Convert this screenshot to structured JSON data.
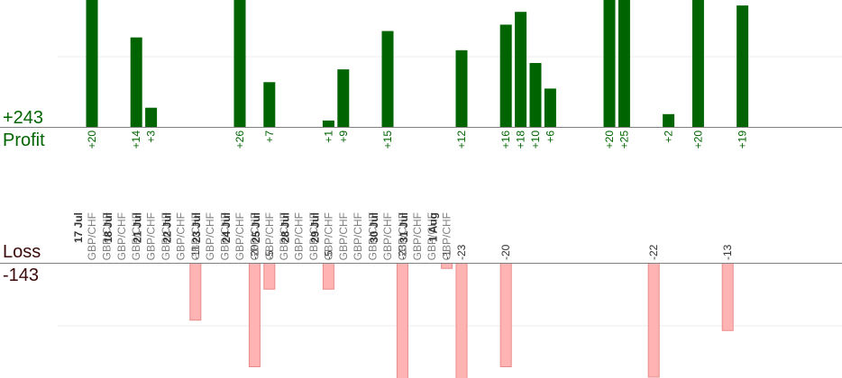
{
  "summary": {
    "profit_total": "+243",
    "profit_label": "Profit",
    "loss_label": "Loss",
    "loss_total": "-143"
  },
  "colors": {
    "profit_bar": "#006400",
    "loss_bar": "#ffb3b3",
    "loss_bar_edge": "#e88a8a",
    "axis": "#808080",
    "grid": "#eeeeee",
    "date_text": "#333333",
    "pair_text": "#808080"
  },
  "chart_data": {
    "type": "bar",
    "profit_scale_max": 20,
    "loss_scale_max": 20,
    "grid": true,
    "columns": [
      {
        "date": "17 Jul",
        "pairs": [
          "GBP/CHF"
        ]
      },
      {
        "date": "",
        "pairs": [
          "GBP/CHF"
        ]
      },
      {
        "date": "18 Jul",
        "pairs": [
          "GBP/CHF"
        ]
      },
      {
        "date": "",
        "pairs": [
          "GBP/CHF"
        ]
      },
      {
        "date": "21 Jul",
        "pairs": [
          "GBP/CHF"
        ]
      },
      {
        "date": "",
        "pairs": [
          "GBP/CHF"
        ]
      },
      {
        "date": "22 Jul",
        "pairs": [
          "GBP/CHF"
        ]
      },
      {
        "date": "",
        "pairs": [
          "GBP/CHF"
        ]
      },
      {
        "date": "23 Jul",
        "pairs": [
          "GBP/CHF"
        ]
      },
      {
        "date": "",
        "pairs": [
          "GBP/CHF"
        ]
      },
      {
        "date": "24 Jul",
        "pairs": [
          "GBP/CHF"
        ]
      },
      {
        "date": "",
        "pairs": [
          "GBP/CHF"
        ]
      },
      {
        "date": "25 Jul",
        "pairs": [
          "GBP/CHF"
        ]
      },
      {
        "date": "",
        "pairs": [
          "GBP/CHF"
        ]
      },
      {
        "date": "28 Jul",
        "pairs": [
          "GBP/CHF"
        ]
      },
      {
        "date": "",
        "pairs": [
          "GBP/CHF"
        ]
      },
      {
        "date": "29 Jul",
        "pairs": [
          "GBP/CHF"
        ]
      },
      {
        "date": "",
        "pairs": [
          "GBP/CHF"
        ]
      },
      {
        "date": "",
        "pairs": [
          "GBP/CHF"
        ]
      },
      {
        "date": "",
        "pairs": [
          "GBP/CHF"
        ]
      },
      {
        "date": "30 Jul",
        "pairs": [
          "GBP/CHF"
        ]
      },
      {
        "date": "",
        "pairs": [
          "GBP/CHF"
        ]
      },
      {
        "date": "31 Jul",
        "pairs": [
          "GBP/CHF"
        ]
      },
      {
        "date": "",
        "pairs": [
          "GBP/CHF"
        ]
      },
      {
        "date": "1 Aug",
        "pairs": [
          "GBP/CHF"
        ]
      }
    ],
    "profits": [
      {
        "col": 0,
        "label": "+20",
        "value": 20
      },
      {
        "col": 3,
        "label": "+14",
        "value": 14
      },
      {
        "col": 4,
        "label": "+3",
        "value": 3
      },
      {
        "col": 10,
        "label": "+26",
        "value": 26
      },
      {
        "col": 12,
        "label": "+7",
        "value": 7
      },
      {
        "col": 16,
        "label": "+1",
        "value": 1
      },
      {
        "col": 17,
        "label": "+9",
        "value": 9
      },
      {
        "col": 20,
        "label": "+15",
        "value": 15
      },
      {
        "col": 25,
        "label": "+12",
        "value": 12
      },
      {
        "col": 28,
        "label": "+16",
        "value": 16
      },
      {
        "col": 29,
        "label": "+18",
        "value": 18
      },
      {
        "col": 30,
        "label": "+10",
        "value": 10
      },
      {
        "col": 31,
        "label": "+6",
        "value": 6
      },
      {
        "col": 35,
        "label": "+20",
        "value": 20
      },
      {
        "col": 36,
        "label": "+25",
        "value": 25
      },
      {
        "col": 39,
        "label": "+2",
        "value": 2
      },
      {
        "col": 41,
        "label": "+20",
        "value": 20
      },
      {
        "col": 44,
        "label": "+19",
        "value": 19
      }
    ],
    "losses": [
      {
        "col": 7,
        "label": "-11",
        "value": -11
      },
      {
        "col": 11,
        "label": "-20",
        "value": -20
      },
      {
        "col": 12,
        "label": "-5",
        "value": -5
      },
      {
        "col": 16,
        "label": "-5",
        "value": -5
      },
      {
        "col": 21,
        "label": "-23",
        "value": -23
      },
      {
        "col": 24,
        "label": "-1",
        "value": -1
      },
      {
        "col": 25,
        "label": "-23",
        "value": -23
      },
      {
        "col": 28,
        "label": "-20",
        "value": -20
      },
      {
        "col": 38,
        "label": "-22",
        "value": -22
      },
      {
        "col": 43,
        "label": "-13",
        "value": -13
      }
    ]
  }
}
